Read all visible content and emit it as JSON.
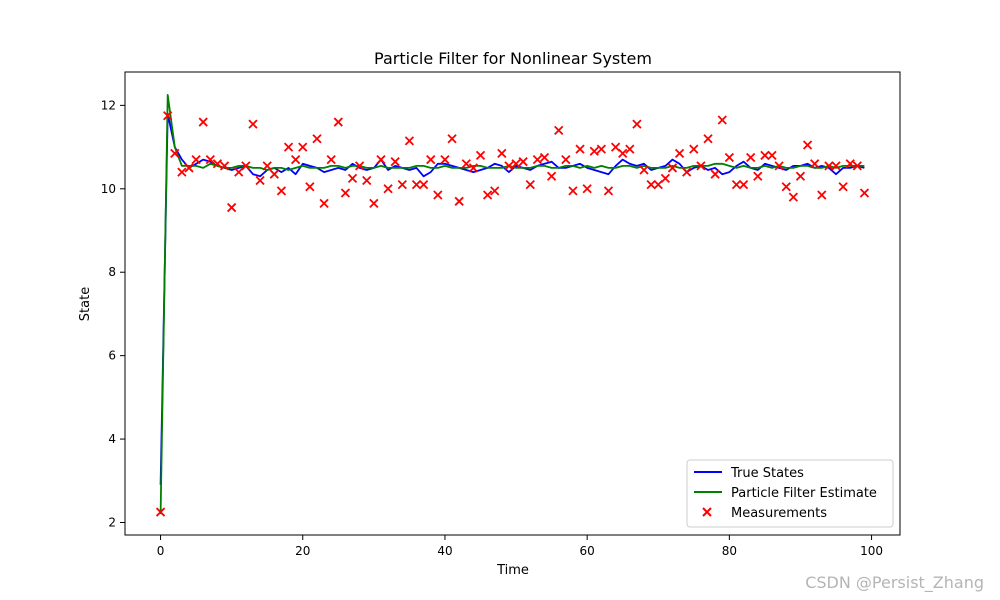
{
  "chart_data": {
    "type": "line",
    "title": "Particle Filter for Nonlinear System",
    "xlabel": "Time",
    "ylabel": "State",
    "xlim": [
      -5,
      104
    ],
    "ylim": [
      1.7,
      12.8
    ],
    "xticks": [
      0,
      20,
      40,
      60,
      80,
      100
    ],
    "yticks": [
      2,
      4,
      6,
      8,
      10,
      12
    ],
    "grid": false,
    "legend_position": "bottom-right",
    "series": [
      {
        "name": "True States",
        "kind": "line",
        "color": "#0000ff",
        "x": [
          0,
          1,
          2,
          3,
          4,
          5,
          6,
          7,
          8,
          9,
          10,
          11,
          12,
          13,
          14,
          15,
          16,
          17,
          18,
          19,
          20,
          21,
          22,
          23,
          24,
          25,
          26,
          27,
          28,
          29,
          30,
          31,
          32,
          33,
          34,
          35,
          36,
          37,
          38,
          39,
          40,
          41,
          42,
          43,
          44,
          45,
          46,
          47,
          48,
          49,
          50,
          51,
          52,
          53,
          54,
          55,
          56,
          57,
          58,
          59,
          60,
          61,
          62,
          63,
          64,
          65,
          66,
          67,
          68,
          69,
          70,
          71,
          72,
          73,
          74,
          75,
          76,
          77,
          78,
          79,
          80,
          81,
          82,
          83,
          84,
          85,
          86,
          87,
          88,
          89,
          90,
          91,
          92,
          93,
          94,
          95,
          96,
          97,
          98,
          99
        ],
        "y": [
          2.9,
          11.8,
          11.0,
          10.7,
          10.5,
          10.6,
          10.7,
          10.65,
          10.55,
          10.5,
          10.45,
          10.5,
          10.55,
          10.35,
          10.3,
          10.45,
          10.5,
          10.4,
          10.5,
          10.35,
          10.6,
          10.55,
          10.5,
          10.4,
          10.45,
          10.5,
          10.45,
          10.6,
          10.5,
          10.45,
          10.5,
          10.7,
          10.45,
          10.55,
          10.5,
          10.45,
          10.5,
          10.3,
          10.4,
          10.6,
          10.6,
          10.55,
          10.5,
          10.45,
          10.4,
          10.45,
          10.5,
          10.6,
          10.55,
          10.4,
          10.55,
          10.5,
          10.45,
          10.55,
          10.6,
          10.65,
          10.5,
          10.5,
          10.55,
          10.6,
          10.5,
          10.45,
          10.4,
          10.35,
          10.55,
          10.7,
          10.6,
          10.55,
          10.6,
          10.45,
          10.5,
          10.55,
          10.7,
          10.6,
          10.4,
          10.5,
          10.55,
          10.45,
          10.5,
          10.35,
          10.4,
          10.55,
          10.65,
          10.5,
          10.45,
          10.6,
          10.55,
          10.5,
          10.45,
          10.55,
          10.55,
          10.6,
          10.5,
          10.55,
          10.5,
          10.35,
          10.5,
          10.5,
          10.55,
          10.5
        ]
      },
      {
        "name": "Particle Filter Estimate",
        "kind": "line",
        "color": "#008000",
        "x": [
          0,
          1,
          2,
          3,
          4,
          5,
          6,
          7,
          8,
          9,
          10,
          11,
          12,
          13,
          14,
          15,
          16,
          17,
          18,
          19,
          20,
          21,
          22,
          23,
          24,
          25,
          26,
          27,
          28,
          29,
          30,
          31,
          32,
          33,
          34,
          35,
          36,
          37,
          38,
          39,
          40,
          41,
          42,
          43,
          44,
          45,
          46,
          47,
          48,
          49,
          50,
          51,
          52,
          53,
          54,
          55,
          56,
          57,
          58,
          59,
          60,
          61,
          62,
          63,
          64,
          65,
          66,
          67,
          68,
          69,
          70,
          71,
          72,
          73,
          74,
          75,
          76,
          77,
          78,
          79,
          80,
          81,
          82,
          83,
          84,
          85,
          86,
          87,
          88,
          89,
          90,
          91,
          92,
          93,
          94,
          95,
          96,
          97,
          98,
          99
        ],
        "y": [
          2.2,
          12.25,
          11.0,
          10.55,
          10.55,
          10.55,
          10.5,
          10.6,
          10.55,
          10.5,
          10.5,
          10.55,
          10.55,
          10.5,
          10.5,
          10.45,
          10.5,
          10.5,
          10.45,
          10.5,
          10.55,
          10.5,
          10.5,
          10.5,
          10.55,
          10.55,
          10.5,
          10.55,
          10.55,
          10.5,
          10.5,
          10.55,
          10.5,
          10.5,
          10.5,
          10.5,
          10.55,
          10.55,
          10.5,
          10.5,
          10.55,
          10.5,
          10.5,
          10.5,
          10.55,
          10.55,
          10.5,
          10.5,
          10.5,
          10.55,
          10.5,
          10.5,
          10.5,
          10.55,
          10.55,
          10.5,
          10.5,
          10.55,
          10.55,
          10.5,
          10.55,
          10.5,
          10.55,
          10.5,
          10.5,
          10.55,
          10.55,
          10.5,
          10.55,
          10.5,
          10.5,
          10.5,
          10.55,
          10.5,
          10.5,
          10.55,
          10.55,
          10.55,
          10.6,
          10.6,
          10.55,
          10.5,
          10.55,
          10.5,
          10.5,
          10.55,
          10.5,
          10.55,
          10.5,
          10.5,
          10.55,
          10.55,
          10.5,
          10.5,
          10.55,
          10.5,
          10.55,
          10.55,
          10.55,
          10.55
        ]
      },
      {
        "name": "Measurements",
        "kind": "scatter",
        "color": "#ff0000",
        "marker": "x",
        "x": [
          0,
          1,
          2,
          3,
          4,
          5,
          6,
          7,
          8,
          9,
          10,
          11,
          12,
          13,
          14,
          15,
          16,
          17,
          18,
          19,
          20,
          21,
          22,
          23,
          24,
          25,
          26,
          27,
          28,
          29,
          30,
          31,
          32,
          33,
          34,
          35,
          36,
          37,
          38,
          39,
          40,
          41,
          42,
          43,
          44,
          45,
          46,
          47,
          48,
          49,
          50,
          51,
          52,
          53,
          54,
          55,
          56,
          57,
          58,
          59,
          60,
          61,
          62,
          63,
          64,
          65,
          66,
          67,
          68,
          69,
          70,
          71,
          72,
          73,
          74,
          75,
          76,
          77,
          78,
          79,
          80,
          81,
          82,
          83,
          84,
          85,
          86,
          87,
          88,
          89,
          90,
          91,
          92,
          93,
          94,
          95,
          96,
          97,
          98,
          99
        ],
        "y": [
          2.25,
          11.75,
          10.85,
          10.4,
          10.5,
          10.7,
          11.6,
          10.7,
          10.6,
          10.55,
          9.55,
          10.4,
          10.55,
          11.55,
          10.2,
          10.55,
          10.35,
          9.95,
          11.0,
          10.7,
          11.0,
          10.05,
          11.2,
          9.65,
          10.7,
          11.6,
          9.9,
          10.25,
          10.55,
          10.2,
          9.65,
          10.7,
          10.0,
          10.65,
          10.1,
          11.15,
          10.1,
          10.1,
          10.7,
          9.85,
          10.7,
          11.2,
          9.7,
          10.6,
          10.5,
          10.8,
          9.85,
          9.95,
          10.85,
          10.55,
          10.6,
          10.65,
          10.1,
          10.7,
          10.75,
          10.3,
          11.4,
          10.7,
          9.95,
          10.95,
          10.0,
          10.9,
          10.95,
          9.95,
          11.0,
          10.85,
          10.95,
          11.55,
          10.45,
          10.1,
          10.1,
          10.25,
          10.5,
          10.85,
          10.4,
          10.95,
          10.55,
          11.2,
          10.35,
          11.65,
          10.75,
          10.1,
          10.1,
          10.75,
          10.3,
          10.8,
          10.8,
          10.55,
          10.05,
          9.8,
          10.3,
          11.05,
          10.6,
          9.85,
          10.55,
          10.55,
          10.05,
          10.6,
          10.55,
          9.9
        ]
      }
    ]
  },
  "watermark": "CSDN @Persist_Zhang"
}
